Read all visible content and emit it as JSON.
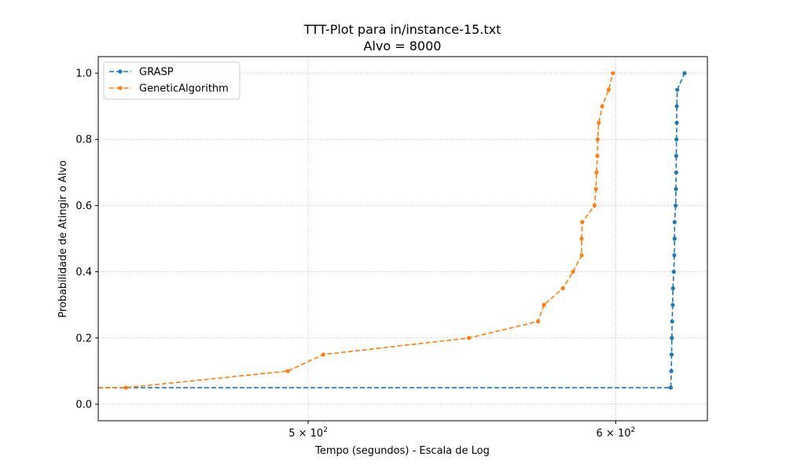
{
  "chart_data": {
    "type": "line",
    "title": "TTT-Plot para in/instance-15.txt",
    "subtitle": "Alvo = 8000",
    "xlabel": "Tempo (segundos) - Escala de Log",
    "ylabel": "Probabilidade de Atingir o Alvo",
    "x_scale": "log",
    "xlim": [
      441.5,
      633.5
    ],
    "ylim": [
      -0.05,
      1.05
    ],
    "x_ticks": [
      {
        "value": 500,
        "label": "5 × 10",
        "exp": "2"
      },
      {
        "value": 600,
        "label": "6 × 10",
        "exp": "2"
      }
    ],
    "y_ticks": [
      {
        "value": 0.0,
        "label": "0.0"
      },
      {
        "value": 0.2,
        "label": "0.2"
      },
      {
        "value": 0.4,
        "label": "0.4"
      },
      {
        "value": 0.6,
        "label": "0.6"
      },
      {
        "value": 0.8,
        "label": "0.8"
      },
      {
        "value": 1.0,
        "label": "1.0"
      }
    ],
    "grid": true,
    "legend_position": "top-left",
    "series": [
      {
        "name": "GRASP",
        "color": "#1f77b4",
        "linestyle": "dashed",
        "marker": "circle",
        "points": [
          [
            441.5,
            0.05
          ],
          [
            619.9,
            0.05
          ],
          [
            620.1,
            0.1
          ],
          [
            620.2,
            0.15
          ],
          [
            620.3,
            0.2
          ],
          [
            620.4,
            0.25
          ],
          [
            620.6,
            0.3
          ],
          [
            620.7,
            0.35
          ],
          [
            621.0,
            0.4
          ],
          [
            621.2,
            0.45
          ],
          [
            621.3,
            0.5
          ],
          [
            621.3,
            0.55
          ],
          [
            621.7,
            0.6
          ],
          [
            621.8,
            0.65
          ],
          [
            621.9,
            0.7
          ],
          [
            621.9,
            0.75
          ],
          [
            622.0,
            0.8
          ],
          [
            622.1,
            0.85
          ],
          [
            622.1,
            0.9
          ],
          [
            622.3,
            0.95
          ],
          [
            625.0,
            1.0
          ]
        ]
      },
      {
        "name": "GeneticAlgorithm",
        "color": "#ff7f0e",
        "linestyle": "dashed",
        "marker": "circle",
        "points": [
          [
            441.5,
            0.05
          ],
          [
            448.8,
            0.05
          ],
          [
            494.0,
            0.1
          ],
          [
            504.5,
            0.15
          ],
          [
            550.0,
            0.2
          ],
          [
            573.0,
            0.25
          ],
          [
            575.0,
            0.3
          ],
          [
            581.5,
            0.35
          ],
          [
            585.0,
            0.4
          ],
          [
            588.0,
            0.45
          ],
          [
            588.0,
            0.5
          ],
          [
            588.2,
            0.55
          ],
          [
            592.5,
            0.6
          ],
          [
            593.0,
            0.65
          ],
          [
            593.2,
            0.7
          ],
          [
            593.5,
            0.75
          ],
          [
            593.6,
            0.8
          ],
          [
            594.0,
            0.85
          ],
          [
            595.2,
            0.9
          ],
          [
            597.5,
            0.95
          ],
          [
            599.0,
            1.0
          ]
        ]
      }
    ]
  }
}
